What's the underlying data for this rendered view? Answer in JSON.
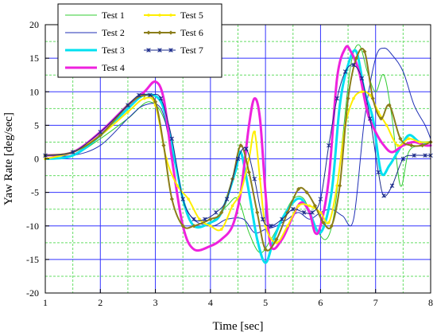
{
  "chart_data": {
    "type": "line",
    "xlabel": "Time [sec]",
    "ylabel": "Yaw Rate [deg/sec]",
    "xlim": [
      1,
      8
    ],
    "ylim": [
      -20,
      20
    ],
    "xticks": [
      1,
      2,
      3,
      4,
      5,
      6,
      7,
      8
    ],
    "yticks": [
      -20,
      -15,
      -10,
      -5,
      0,
      5,
      10,
      15,
      20
    ],
    "grid": true,
    "legend_position": "top-left",
    "series": [
      {
        "name": "Test 1",
        "color": "#33cc33",
        "marker": "none",
        "width": 1,
        "x": [
          1,
          1.5,
          2,
          2.5,
          2.9,
          3.2,
          3.5,
          3.7,
          4,
          4.3,
          4.5,
          4.7,
          4.9,
          5.1,
          5.3,
          5.5,
          5.7,
          5.9,
          6.1,
          6.25,
          6.4,
          6.55,
          6.7,
          6.85,
          7,
          7.15,
          7.3,
          7.45,
          7.6,
          7.8,
          8
        ],
        "y": [
          0,
          0.5,
          3,
          6,
          8.5,
          5,
          -6,
          -10,
          -9.5,
          -7,
          -6,
          -11,
          -14,
          -12,
          -9,
          -6,
          -6,
          -10,
          -12,
          -8,
          3,
          14,
          17,
          13,
          10,
          12.5,
          6,
          -4,
          1,
          2,
          2.5
        ]
      },
      {
        "name": "Test 2",
        "color": "#1f2fb5",
        "marker": "none",
        "width": 1,
        "x": [
          1,
          1.5,
          2,
          2.5,
          2.8,
          3.1,
          3.3,
          3.6,
          4,
          4.3,
          4.6,
          4.8,
          5,
          5.2,
          5.4,
          5.6,
          5.8,
          6,
          6.2,
          6.4,
          6.6,
          6.8,
          7,
          7.15,
          7.3,
          7.5,
          7.7,
          7.9,
          8
        ],
        "y": [
          0.5,
          0.5,
          2,
          6,
          8,
          7.5,
          1,
          -8,
          -10,
          -9,
          -9,
          -11,
          -10.5,
          -10,
          -9,
          -8,
          -9,
          -8,
          -7.5,
          -8.5,
          -9,
          6,
          15,
          16.5,
          15.5,
          13,
          8,
          5,
          3
        ]
      },
      {
        "name": "Test 3",
        "color": "#00e0f0",
        "marker": "none",
        "width": 3,
        "x": [
          1,
          1.5,
          2,
          2.5,
          2.8,
          3.1,
          3.3,
          3.5,
          3.7,
          4,
          4.2,
          4.45,
          4.55,
          4.7,
          4.85,
          5,
          5.15,
          5.3,
          5.5,
          5.65,
          5.8,
          6,
          6.2,
          6.35,
          6.5,
          6.65,
          6.8,
          6.95,
          7.1,
          7.25,
          7.4,
          7.6,
          7.8,
          8
        ],
        "y": [
          0,
          0.5,
          3.5,
          7.5,
          9.5,
          8.5,
          2,
          -6,
          -10,
          -9.5,
          -8,
          -2,
          1,
          -5,
          -12,
          -15.5,
          -12,
          -9,
          -6.5,
          -6,
          -8,
          -11,
          -5,
          8,
          14,
          16,
          10,
          6,
          -2,
          -1,
          1,
          3.5,
          2.5,
          2.5
        ]
      },
      {
        "name": "Test 4",
        "color": "#ee22dd",
        "marker": "none",
        "width": 3,
        "x": [
          1,
          1.5,
          2,
          2.5,
          2.8,
          3,
          3.15,
          3.3,
          3.5,
          3.7,
          4,
          4.2,
          4.4,
          4.55,
          4.7,
          4.8,
          4.9,
          5,
          5.1,
          5.3,
          5.5,
          5.65,
          5.8,
          5.9,
          6,
          6.15,
          6.3,
          6.45,
          6.55,
          6.7,
          6.85,
          7,
          7.15,
          7.3,
          7.5,
          7.7,
          7.9,
          8
        ],
        "y": [
          0.5,
          1,
          4,
          8,
          10,
          11.5,
          9,
          0,
          -10,
          -13.5,
          -13,
          -12,
          -10,
          -5,
          5,
          9,
          6,
          -5,
          -13,
          -12,
          -8.5,
          -6.5,
          -8,
          -11,
          -10,
          -3,
          12,
          16.5,
          16,
          13,
          7,
          4,
          2,
          1,
          2,
          2.5,
          2,
          2
        ]
      },
      {
        "name": "Test 5",
        "color": "#ffee00",
        "marker": "circle",
        "width": 2,
        "x": [
          1,
          1.5,
          2,
          2.5,
          2.8,
          3,
          3.2,
          3.4,
          3.6,
          3.8,
          4,
          4.2,
          4.4,
          4.55,
          4.7,
          4.8,
          4.9,
          5,
          5.2,
          5.4,
          5.6,
          5.8,
          6,
          6.15,
          6.3,
          6.45,
          6.6,
          6.75,
          6.9,
          7.05,
          7.2,
          7.4,
          7.6,
          7.8,
          8
        ],
        "y": [
          0,
          1,
          3.5,
          7,
          9,
          8,
          0,
          -4,
          -6,
          -9,
          -10,
          -10.5,
          -7,
          -5,
          0,
          4,
          -3,
          -10,
          -12.5,
          -10,
          -7,
          -7,
          -8,
          -9.5,
          -4,
          5,
          9,
          10,
          9.5,
          7,
          5,
          2,
          3,
          2.5,
          2.5
        ]
      },
      {
        "name": "Test 6",
        "color": "#8b7d1a",
        "marker": "diamond",
        "width": 2,
        "x": [
          1,
          1.5,
          2,
          2.5,
          2.8,
          3,
          3.15,
          3.3,
          3.5,
          3.7,
          4,
          4.2,
          4.4,
          4.55,
          4.7,
          4.85,
          5,
          5.2,
          5.4,
          5.6,
          5.75,
          5.9,
          6.05,
          6.2,
          6.35,
          6.5,
          6.65,
          6.8,
          6.95,
          7.1,
          7.25,
          7.45,
          7.65,
          7.85,
          8
        ],
        "y": [
          0.5,
          1,
          3.5,
          8,
          9.5,
          8.5,
          2,
          -6,
          -10,
          -10,
          -9,
          -8,
          -3,
          2,
          -2,
          -8,
          -13.5,
          -12,
          -8,
          -4.5,
          -5,
          -7,
          -9.5,
          -10,
          -4,
          9,
          15,
          16,
          9,
          6,
          8,
          3,
          2,
          2,
          2.5
        ]
      },
      {
        "name": "Test 7",
        "color": "#1a2a8a",
        "marker": "star",
        "width": 1,
        "x": [
          1,
          1.5,
          2,
          2.5,
          2.7,
          2.9,
          3.1,
          3.3,
          3.5,
          3.7,
          3.9,
          4.1,
          4.3,
          4.5,
          4.65,
          4.8,
          4.95,
          5.1,
          5.3,
          5.5,
          5.7,
          5.85,
          6,
          6.15,
          6.3,
          6.45,
          6.6,
          6.75,
          6.9,
          7.05,
          7.15,
          7.3,
          7.5,
          7.7,
          7.9,
          8
        ],
        "y": [
          0.5,
          1,
          4,
          8,
          9.5,
          9.5,
          9,
          3,
          -6,
          -9,
          -9,
          -8,
          -6,
          0,
          1.5,
          -3,
          -9,
          -10,
          -9,
          -7.5,
          -8,
          -8,
          -6,
          2,
          9,
          13,
          14,
          12,
          6,
          -2,
          -5.5,
          -4,
          0,
          0.5,
          0.5,
          0.5
        ]
      }
    ]
  },
  "legend": {
    "entries": [
      {
        "label": "Test 1",
        "color": "#33cc33",
        "marker": "none",
        "width": 1
      },
      {
        "label": "Test 5",
        "color": "#ffee00",
        "marker": "circle",
        "width": 2
      },
      {
        "label": "Test 2",
        "color": "#1f2fb5",
        "marker": "none",
        "width": 1
      },
      {
        "label": "Test 6",
        "color": "#8b7d1a",
        "marker": "diamond",
        "width": 2
      },
      {
        "label": "Test 3",
        "color": "#00e0f0",
        "marker": "none",
        "width": 3
      },
      {
        "label": "Test 7",
        "color": "#1a2a8a",
        "marker": "star",
        "width": 1
      },
      {
        "label": "Test 4",
        "color": "#ee22dd",
        "marker": "none",
        "width": 3
      }
    ]
  },
  "colors": {
    "grid_major": "#3333ff",
    "grid_minor": "#66dd66",
    "frame": "#000000"
  }
}
